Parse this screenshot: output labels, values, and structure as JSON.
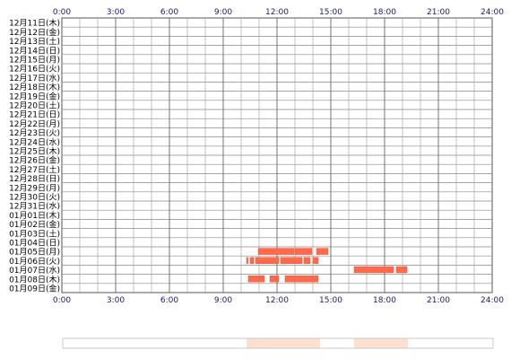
{
  "chart_data": {
    "type": "timeline",
    "title": "",
    "x_ticks": [
      "0:00",
      "3:00",
      "6:00",
      "9:00",
      "12:00",
      "15:00",
      "18:00",
      "21:00",
      "24:00"
    ],
    "x_range_hours": [
      0,
      24
    ],
    "grid": true,
    "rows": [
      "12月11日(木)",
      "12月12日(金)",
      "12月13日(土)",
      "12月14日(日)",
      "12月15日(月)",
      "12月16日(火)",
      "12月17日(水)",
      "12月18日(木)",
      "12月19日(金)",
      "12月20日(土)",
      "12月21日(日)",
      "12月22日(月)",
      "12月23日(火)",
      "12月24日(水)",
      "12月25日(木)",
      "12月26日(金)",
      "12月27日(土)",
      "12月28日(日)",
      "12月29日(月)",
      "12月30日(火)",
      "12月31日(水)",
      "01月01日(木)",
      "01月02日(金)",
      "01月03日(土)",
      "01月04日(日)",
      "01月05日(月)",
      "01月06日(火)",
      "01月07日(水)",
      "01月08日(木)",
      "01月09日(金)"
    ],
    "activity": [
      {
        "row": "01月05日(月)",
        "intervals": [
          [
            10.95,
            12.95
          ],
          [
            13.0,
            13.95
          ],
          [
            14.2,
            14.85
          ]
        ]
      },
      {
        "row": "01月06日(火)",
        "intervals": [
          [
            10.3,
            10.38
          ],
          [
            10.5,
            10.7
          ],
          [
            10.8,
            12.1
          ],
          [
            12.2,
            13.4
          ],
          [
            13.5,
            13.85
          ],
          [
            14.0,
            14.3
          ]
        ]
      },
      {
        "row": "01月07日(水)",
        "intervals": [
          [
            16.3,
            18.5
          ],
          [
            18.65,
            19.25
          ]
        ]
      },
      {
        "row": "01月08日(木)",
        "intervals": [
          [
            10.4,
            11.3
          ],
          [
            11.6,
            12.1
          ],
          [
            12.45,
            14.3
          ]
        ]
      }
    ],
    "summary_intervals": [
      [
        10.3,
        14.4
      ],
      [
        16.3,
        19.3
      ]
    ],
    "colors": {
      "bar": "#ff6a4a",
      "bar_dark": "#e8492c",
      "summary": "#fde0cf",
      "grid": "#888888",
      "border": "#555555",
      "tick_text": "#1a1a6e"
    }
  }
}
